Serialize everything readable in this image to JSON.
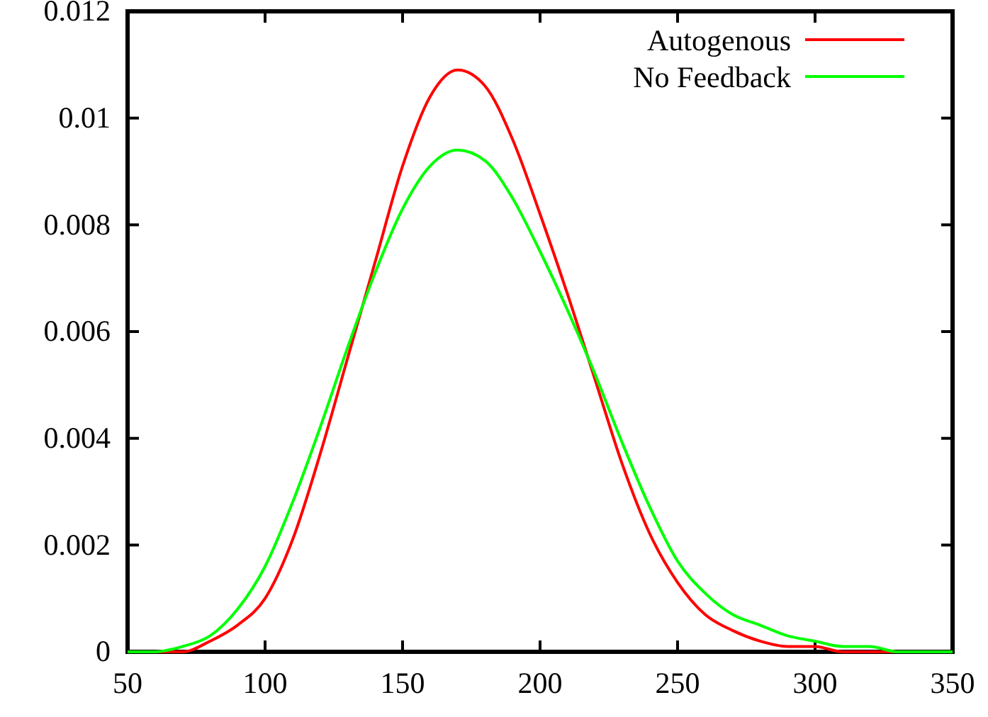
{
  "chart_data": {
    "type": "line",
    "x": [
      50,
      60,
      70,
      80,
      90,
      100,
      110,
      120,
      130,
      140,
      150,
      160,
      170,
      180,
      190,
      200,
      210,
      220,
      230,
      240,
      250,
      260,
      270,
      280,
      290,
      300,
      310,
      320,
      330,
      340,
      350
    ],
    "series": [
      {
        "name": "Autogenous",
        "color": "#ff0000",
        "values": [
          0,
          0,
          0,
          0.0002,
          0.0005,
          0.001,
          0.0021,
          0.0037,
          0.0055,
          0.0073,
          0.0091,
          0.0104,
          0.0109,
          0.0106,
          0.0096,
          0.0082,
          0.0067,
          0.0051,
          0.0035,
          0.0022,
          0.0013,
          0.0007,
          0.0004,
          0.0002,
          0.0001,
          0.0001,
          0,
          0,
          0,
          0,
          0
        ]
      },
      {
        "name": "No Feedback",
        "color": "#00ff00",
        "values": [
          0,
          0,
          0.0001,
          0.0003,
          0.0008,
          0.0016,
          0.0028,
          0.0042,
          0.0057,
          0.0071,
          0.0083,
          0.0091,
          0.0094,
          0.0092,
          0.0085,
          0.0075,
          0.0064,
          0.0052,
          0.0039,
          0.0027,
          0.0017,
          0.0011,
          0.0007,
          0.0005,
          0.0003,
          0.0002,
          0.0001,
          0.0001,
          0,
          0,
          0
        ]
      }
    ],
    "xlim": [
      50,
      350
    ],
    "xticks": [
      50,
      100,
      150,
      200,
      250,
      300,
      350
    ],
    "ylim": [
      0,
      0.012
    ],
    "yticks": [
      0,
      0.002,
      0.004,
      0.006,
      0.008,
      0.01,
      0.012
    ],
    "legend": "top right",
    "grid": false
  }
}
